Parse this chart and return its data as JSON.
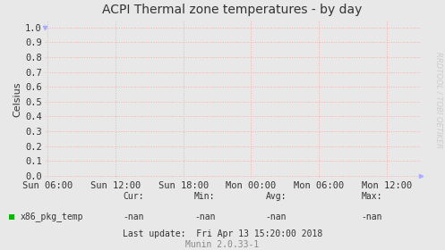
{
  "title": "ACPI Thermal zone temperatures - by day",
  "ylabel": "Celsius",
  "bg_color": "#e8e8e8",
  "plot_bg_color": "#e8e8e8",
  "grid_color": "#ffaaaa",
  "grid_style": ":",
  "yticks": [
    0.0,
    0.1,
    0.2,
    0.3,
    0.4,
    0.5,
    0.6,
    0.7,
    0.8,
    0.9,
    1.0
  ],
  "ylim": [
    -0.02,
    1.05
  ],
  "xtick_labels": [
    "Sun 06:00",
    "Sun 12:00",
    "Sun 18:00",
    "Mon 00:00",
    "Mon 06:00",
    "Mon 12:00"
  ],
  "xtick_positions": [
    0,
    1,
    2,
    3,
    4,
    5
  ],
  "xlim": [
    -0.05,
    5.5
  ],
  "legend_label": "x86_pkg_temp",
  "legend_color": "#00bb00",
  "watermark": "RRDTOOL / TOBI OETIKER",
  "footer_legend_cur": "Cur:",
  "footer_legend_min": "Min:",
  "footer_legend_avg": "Avg:",
  "footer_legend_max": "Max:",
  "footer_cur_val": "-nan",
  "footer_min_val": "-nan",
  "footer_avg_val": "-nan",
  "footer_max_val": "-nan",
  "footer_lastupdate": "Last update:  Fri Apr 13 15:20:00 2018",
  "munin_version": "Munin 2.0.33-1",
  "title_fontsize": 10,
  "axis_fontsize": 7.5,
  "footer_fontsize": 7,
  "watermark_fontsize": 6,
  "ylabel_fontsize": 8
}
